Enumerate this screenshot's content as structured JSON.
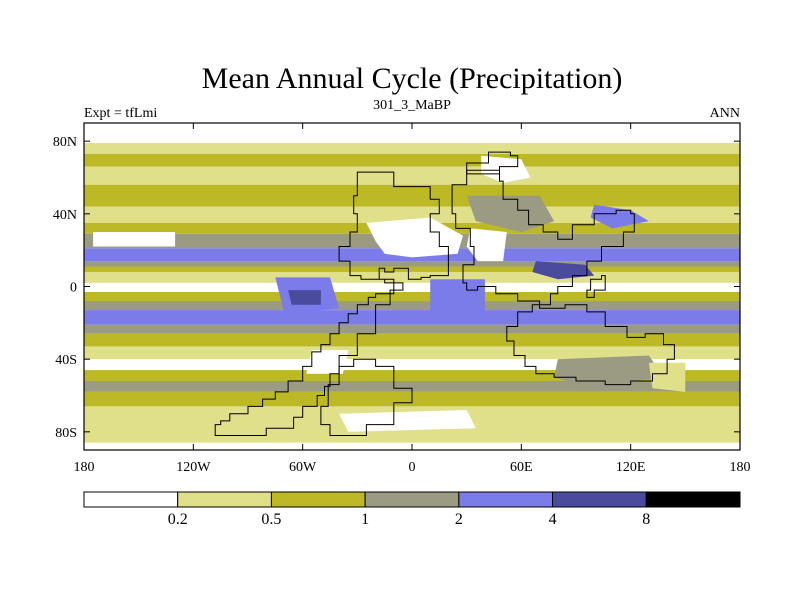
{
  "chart_data": {
    "type": "heatmap",
    "title": "Mean Annual Cycle (Precipitation)",
    "subtitle_left": "Expt = tfLmi",
    "subtitle_center": "301_3_MaBP",
    "subtitle_right": "ANN",
    "x_range": [
      -180,
      180
    ],
    "y_range": [
      -90,
      90
    ],
    "x_ticks": [
      {
        "value": -180,
        "label": "180"
      },
      {
        "value": -120,
        "label": "120W"
      },
      {
        "value": -60,
        "label": "60W"
      },
      {
        "value": 0,
        "label": "0"
      },
      {
        "value": 60,
        "label": "60E"
      },
      {
        "value": 120,
        "label": "120E"
      },
      {
        "value": 180,
        "label": "180"
      }
    ],
    "y_ticks": [
      {
        "value": 80,
        "label": "80N"
      },
      {
        "value": 40,
        "label": "40N"
      },
      {
        "value": 0,
        "label": "0"
      },
      {
        "value": -40,
        "label": "40S"
      },
      {
        "value": -80,
        "label": "80S"
      }
    ],
    "colorbar": {
      "levels": [
        "0.2",
        "0.5",
        "1",
        "2",
        "4",
        "8"
      ],
      "colors": [
        "#ffffff",
        "#e0df8a",
        "#bcb826",
        "#9b9a82",
        "#7b7bea",
        "#4b4b9e",
        "#000000"
      ]
    },
    "zonal_bands": [
      {
        "lat_top": 90,
        "lat_bottom": 79,
        "level": 0
      },
      {
        "lat_top": 79,
        "lat_bottom": 73,
        "level": 1
      },
      {
        "lat_top": 73,
        "lat_bottom": 66,
        "level": 2
      },
      {
        "lat_top": 66,
        "lat_bottom": 56,
        "level": 1
      },
      {
        "lat_top": 56,
        "lat_bottom": 44,
        "level": 2
      },
      {
        "lat_top": 44,
        "lat_bottom": 35,
        "level": 1
      },
      {
        "lat_top": 35,
        "lat_bottom": 29,
        "level": 2
      },
      {
        "lat_top": 29,
        "lat_bottom": 21,
        "level": 3
      },
      {
        "lat_top": 21,
        "lat_bottom": 14,
        "level": 4
      },
      {
        "lat_top": 14,
        "lat_bottom": 11,
        "level": 3
      },
      {
        "lat_top": 11,
        "lat_bottom": 8,
        "level": 2
      },
      {
        "lat_top": 8,
        "lat_bottom": 2,
        "level": 1
      },
      {
        "lat_top": 2,
        "lat_bottom": -3,
        "level": 0
      },
      {
        "lat_top": -3,
        "lat_bottom": -8,
        "level": 2
      },
      {
        "lat_top": -8,
        "lat_bottom": -13,
        "level": 3
      },
      {
        "lat_top": -13,
        "lat_bottom": -21,
        "level": 4
      },
      {
        "lat_top": -21,
        "lat_bottom": -26,
        "level": 3
      },
      {
        "lat_top": -26,
        "lat_bottom": -33,
        "level": 2
      },
      {
        "lat_top": -33,
        "lat_bottom": -40,
        "level": 1
      },
      {
        "lat_top": -40,
        "lat_bottom": -46,
        "level": 0
      },
      {
        "lat_top": -46,
        "lat_bottom": -52,
        "level": 2
      },
      {
        "lat_top": -52,
        "lat_bottom": -58,
        "level": 3
      },
      {
        "lat_top": -58,
        "lat_bottom": -66,
        "level": 2
      },
      {
        "lat_top": -66,
        "lat_bottom": -76,
        "level": 1
      },
      {
        "lat_top": -76,
        "lat_bottom": -86,
        "level": 1
      },
      {
        "lat_top": -86,
        "lat_bottom": -90,
        "level": 0
      }
    ],
    "regional_features": [
      {
        "name": "north-africa-dry",
        "level": 0,
        "ring": [
          [
            -25,
            35
          ],
          [
            10,
            38
          ],
          [
            28,
            28
          ],
          [
            25,
            18
          ],
          [
            0,
            16
          ],
          [
            -15,
            18
          ],
          [
            -20,
            25
          ]
        ]
      },
      {
        "name": "arabia-dry",
        "level": 0,
        "ring": [
          [
            32,
            32
          ],
          [
            52,
            30
          ],
          [
            50,
            14
          ],
          [
            36,
            14
          ],
          [
            30,
            22
          ]
        ]
      },
      {
        "name": "siberia-dry",
        "level": 0,
        "ring": [
          [
            38,
            72
          ],
          [
            60,
            70
          ],
          [
            65,
            60
          ],
          [
            50,
            57
          ],
          [
            38,
            62
          ]
        ]
      },
      {
        "name": "central-africa-wet",
        "level": 4,
        "ring": [
          [
            10,
            4
          ],
          [
            40,
            4
          ],
          [
            40,
            -14
          ],
          [
            10,
            -14
          ]
        ]
      },
      {
        "name": "maritime-continent-wet",
        "level": 5,
        "ring": [
          [
            68,
            14
          ],
          [
            95,
            12
          ],
          [
            100,
            6
          ],
          [
            80,
            4
          ],
          [
            66,
            8
          ]
        ]
      },
      {
        "name": "asia-gray",
        "level": 3,
        "ring": [
          [
            30,
            50
          ],
          [
            70,
            50
          ],
          [
            78,
            36
          ],
          [
            60,
            30
          ],
          [
            35,
            36
          ]
        ]
      },
      {
        "name": "asia-wet",
        "level": 4,
        "ring": [
          [
            100,
            45
          ],
          [
            120,
            42
          ],
          [
            130,
            36
          ],
          [
            110,
            32
          ],
          [
            98,
            38
          ]
        ]
      },
      {
        "name": "amazon-wet",
        "level": 4,
        "ring": [
          [
            -75,
            5
          ],
          [
            -45,
            5
          ],
          [
            -40,
            -12
          ],
          [
            -70,
            -15
          ]
        ]
      },
      {
        "name": "amazon-core",
        "level": 5,
        "ring": [
          [
            -68,
            -2
          ],
          [
            -50,
            -2
          ],
          [
            -50,
            -10
          ],
          [
            -66,
            -10
          ]
        ]
      },
      {
        "name": "south-america-dry",
        "level": 0,
        "ring": [
          [
            -55,
            -35
          ],
          [
            -35,
            -35
          ],
          [
            -38,
            -48
          ],
          [
            -58,
            -48
          ]
        ]
      },
      {
        "name": "australia-gray",
        "level": 3,
        "ring": [
          [
            80,
            -40
          ],
          [
            130,
            -38
          ],
          [
            138,
            -50
          ],
          [
            95,
            -55
          ],
          [
            78,
            -50
          ]
        ]
      },
      {
        "name": "australia-dry",
        "level": 1,
        "ring": [
          [
            130,
            -42
          ],
          [
            150,
            -42
          ],
          [
            150,
            -58
          ],
          [
            132,
            -56
          ]
        ]
      },
      {
        "name": "southern-ocean-dry",
        "level": 0,
        "ring": [
          [
            -40,
            -70
          ],
          [
            30,
            -68
          ],
          [
            35,
            -78
          ],
          [
            -35,
            -80
          ]
        ]
      },
      {
        "name": "north-pacific-white",
        "level": 0,
        "ring": [
          [
            -175,
            30
          ],
          [
            -130,
            30
          ],
          [
            -130,
            22
          ],
          [
            -175,
            22
          ]
        ]
      }
    ],
    "continent_outlines": [
      {
        "name": "western-continent",
        "ring": [
          [
            -30,
            63
          ],
          [
            -12,
            63
          ],
          [
            -10,
            55
          ],
          [
            0,
            55
          ],
          [
            10,
            48
          ],
          [
            15,
            40
          ],
          [
            10,
            30
          ],
          [
            15,
            22
          ],
          [
            20,
            6
          ],
          [
            10,
            5
          ],
          [
            5,
            4
          ],
          [
            -2,
            10
          ],
          [
            -10,
            8
          ],
          [
            -15,
            10
          ],
          [
            -18,
            4
          ],
          [
            -10,
            -4
          ],
          [
            -20,
            -6
          ],
          [
            -24,
            -10
          ],
          [
            -30,
            -15
          ],
          [
            -35,
            -20
          ],
          [
            -40,
            -26
          ],
          [
            -45,
            -32
          ],
          [
            -50,
            -36
          ],
          [
            -55,
            -44
          ],
          [
            -60,
            -52
          ],
          [
            -68,
            -58
          ],
          [
            -75,
            -62
          ],
          [
            -82,
            -66
          ],
          [
            -90,
            -70
          ],
          [
            -100,
            -74
          ],
          [
            -105,
            -76
          ],
          [
            -108,
            -82
          ],
          [
            -95,
            -82
          ],
          [
            -80,
            -78
          ],
          [
            -65,
            -72
          ],
          [
            -60,
            -66
          ],
          [
            -52,
            -60
          ],
          [
            -48,
            -55
          ],
          [
            -45,
            -48
          ],
          [
            -40,
            -38
          ],
          [
            -30,
            -26
          ],
          [
            -20,
            -10
          ],
          [
            -12,
            -2
          ],
          [
            -5,
            2
          ],
          [
            -15,
            4
          ],
          [
            -28,
            6
          ],
          [
            -34,
            14
          ],
          [
            -40,
            22
          ],
          [
            -34,
            30
          ],
          [
            -30,
            40
          ],
          [
            -32,
            50
          ]
        ]
      },
      {
        "name": "central-continent",
        "ring": [
          [
            22,
            56
          ],
          [
            30,
            64
          ],
          [
            40,
            64
          ],
          [
            48,
            58
          ],
          [
            50,
            48
          ],
          [
            58,
            42
          ],
          [
            64,
            34
          ],
          [
            72,
            30
          ],
          [
            80,
            26
          ],
          [
            88,
            34
          ],
          [
            100,
            40
          ],
          [
            112,
            42
          ],
          [
            120,
            40
          ],
          [
            122,
            30
          ],
          [
            116,
            22
          ],
          [
            104,
            14
          ],
          [
            96,
            6
          ],
          [
            88,
            0
          ],
          [
            80,
            -4
          ],
          [
            76,
            -10
          ],
          [
            66,
            -14
          ],
          [
            58,
            -22
          ],
          [
            52,
            -30
          ],
          [
            56,
            -38
          ],
          [
            62,
            -44
          ],
          [
            68,
            -48
          ],
          [
            78,
            -50
          ],
          [
            90,
            -52
          ],
          [
            106,
            -54
          ],
          [
            120,
            -52
          ],
          [
            132,
            -48
          ],
          [
            140,
            -40
          ],
          [
            144,
            -32
          ],
          [
            138,
            -26
          ],
          [
            128,
            -28
          ],
          [
            118,
            -22
          ],
          [
            106,
            -14
          ],
          [
            96,
            -10
          ],
          [
            84,
            -12
          ],
          [
            70,
            -8
          ],
          [
            58,
            -4
          ],
          [
            46,
            0
          ],
          [
            36,
            -2
          ],
          [
            30,
            2
          ],
          [
            28,
            12
          ],
          [
            34,
            22
          ],
          [
            32,
            32
          ],
          [
            24,
            40
          ],
          [
            22,
            48
          ]
        ]
      },
      {
        "name": "southern-continent",
        "ring": [
          [
            -45,
            -82
          ],
          [
            -25,
            -76
          ],
          [
            -10,
            -64
          ],
          [
            0,
            -56
          ],
          [
            -10,
            -44
          ],
          [
            -20,
            -40
          ],
          [
            -32,
            -44
          ],
          [
            -40,
            -54
          ],
          [
            -46,
            -66
          ],
          [
            -50,
            -76
          ]
        ]
      },
      {
        "name": "northern-island",
        "ring": [
          [
            30,
            68
          ],
          [
            42,
            74
          ],
          [
            54,
            72
          ],
          [
            58,
            66
          ],
          [
            48,
            62
          ],
          [
            36,
            62
          ]
        ]
      },
      {
        "name": "east-island",
        "ring": [
          [
            98,
            4
          ],
          [
            104,
            6
          ],
          [
            106,
            -2
          ],
          [
            100,
            -6
          ],
          [
            96,
            -2
          ]
        ]
      }
    ]
  }
}
